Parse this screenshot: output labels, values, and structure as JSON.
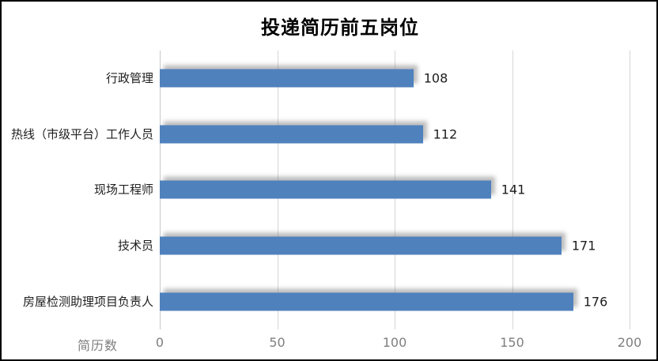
{
  "chart_data": {
    "type": "bar",
    "orientation": "horizontal",
    "title": "投递简历前五岗位",
    "xlabel": "简历数",
    "ylabel": "",
    "categories": [
      "行政管理",
      "热线（市级平台）工作人员",
      "现场工程师",
      "技术员",
      "房屋检测助理项目负责人"
    ],
    "values": [
      108,
      112,
      141,
      171,
      176
    ],
    "xlim": [
      0,
      200
    ],
    "x_ticks": [
      "0",
      "50",
      "100",
      "150",
      "200"
    ],
    "grid": "vertical-on",
    "legend": "none",
    "bar_color": "#4F81BD",
    "value_labels": [
      "108",
      "112",
      "141",
      "171",
      "176"
    ]
  }
}
